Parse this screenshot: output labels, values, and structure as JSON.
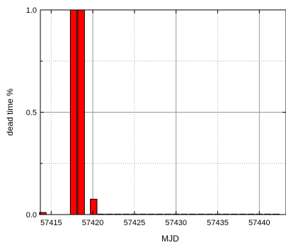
{
  "chart_data": {
    "type": "bar",
    "title": "",
    "xlabel": "MJD",
    "ylabel": "dead time %",
    "xlim": [
      57413.7,
      57443.2
    ],
    "ylim": [
      0,
      1.0
    ],
    "x_ticks": [
      57415,
      57420,
      57425,
      57430,
      57435,
      57440
    ],
    "x_tick_labels": [
      "57415",
      "57420",
      "57425",
      "57430",
      "57435",
      "57440"
    ],
    "y_ticks": [
      0.0,
      0.5,
      1.0
    ],
    "y_tick_labels": [
      "0.0",
      "0.5",
      "1.0"
    ],
    "grid": {
      "major_solid_x": [
        57420,
        57430,
        57440
      ],
      "minor_dotted_x": [
        57415,
        57425,
        57435
      ],
      "major_solid_y": [
        0.5
      ],
      "minor_dotted_y": [
        0.25,
        0.75
      ]
    },
    "bar_color": "#ff0000",
    "bar_edge_color": "#000000",
    "bar_width_days": 0.8,
    "series": [
      {
        "x": [
          57414.0,
          57417.7,
          57418.6,
          57420.1,
          57421.0,
          57422.0,
          57423.0,
          57424.0,
          57425.0,
          57426.0,
          57427.0,
          57428.0,
          57429.0,
          57430.0,
          57431.0,
          57432.0,
          57433.0,
          57434.0,
          57435.0,
          57436.0,
          57437.0,
          57438.0,
          57439.0,
          57440.0,
          57441.0,
          57442.0
        ],
        "values": [
          0.01,
          1.0,
          1.0,
          0.075,
          0.002,
          0.002,
          0.002,
          0.002,
          0.002,
          0.002,
          0.002,
          0.002,
          0.002,
          0.002,
          0.002,
          0.002,
          0.002,
          0.002,
          0.002,
          0.002,
          0.002,
          0.002,
          0.002,
          0.002,
          0.002,
          0.002
        ]
      }
    ]
  }
}
